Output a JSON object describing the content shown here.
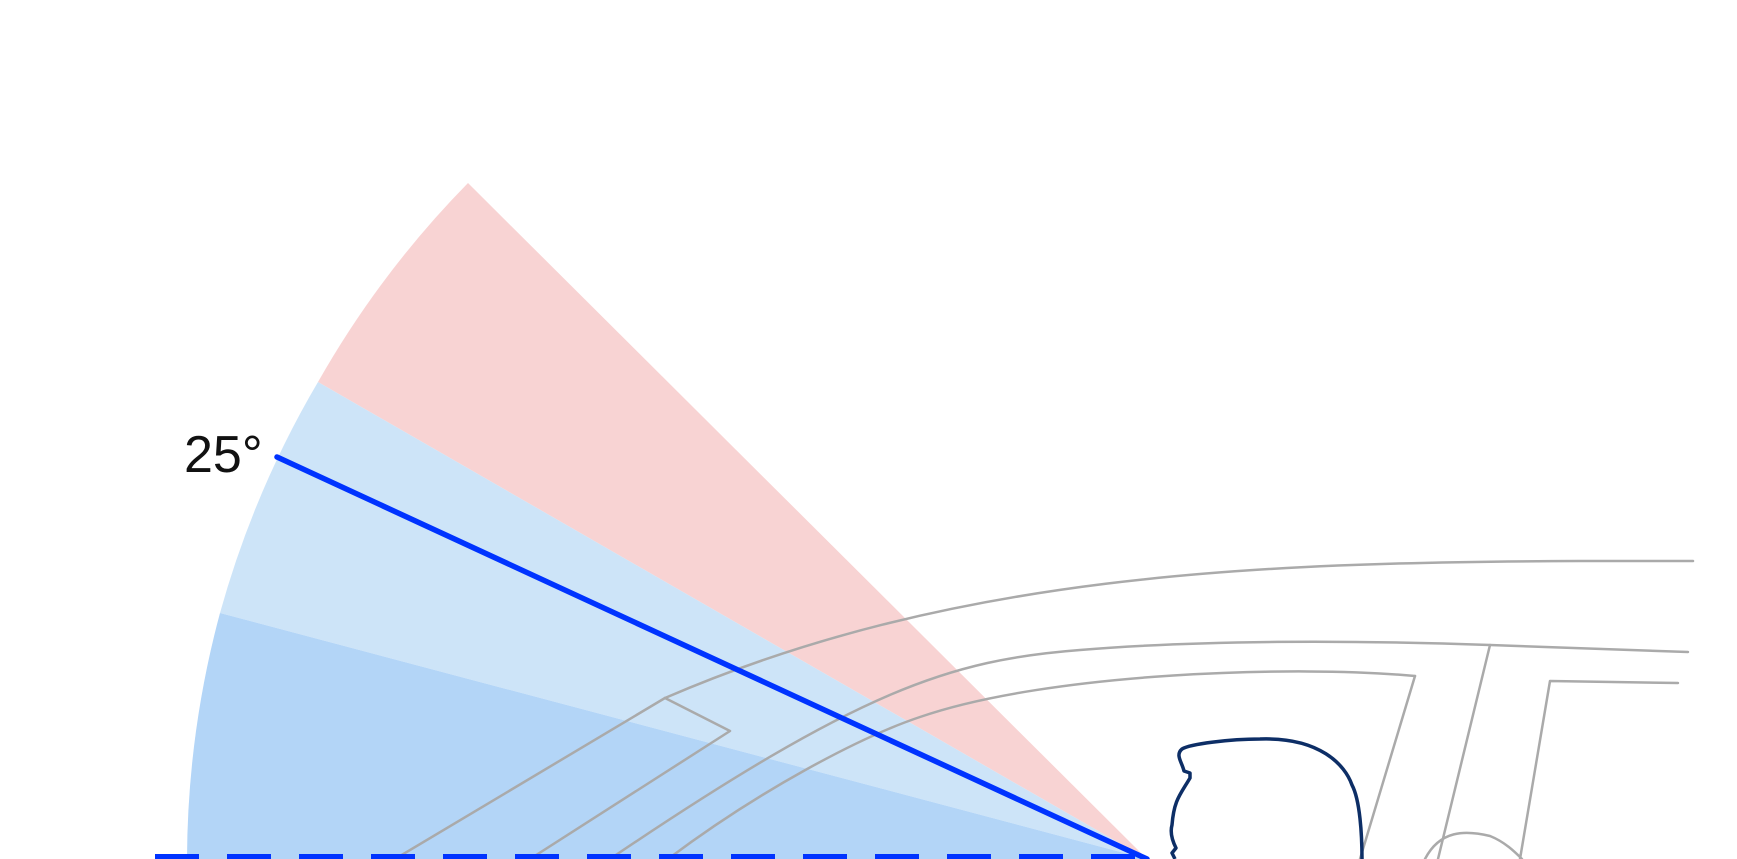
{
  "diagram": {
    "annotation": {
      "angle_label": "25°"
    },
    "colors": {
      "zone_upper": "#f8d3d3",
      "zone_middle": "#cde4f8",
      "zone_lower": "#b3d5f7",
      "sight_line": "#0033ff",
      "horizon_dash": "#0033ff",
      "head_outline": "#0d2e66",
      "car_outline": "#aaaaaa",
      "background": "#ffffff"
    },
    "angles_deg": {
      "upper_zone_top": 45,
      "upper_zone_bottom": 30,
      "middle_zone_bottom": 15,
      "sight_line": 25
    }
  }
}
